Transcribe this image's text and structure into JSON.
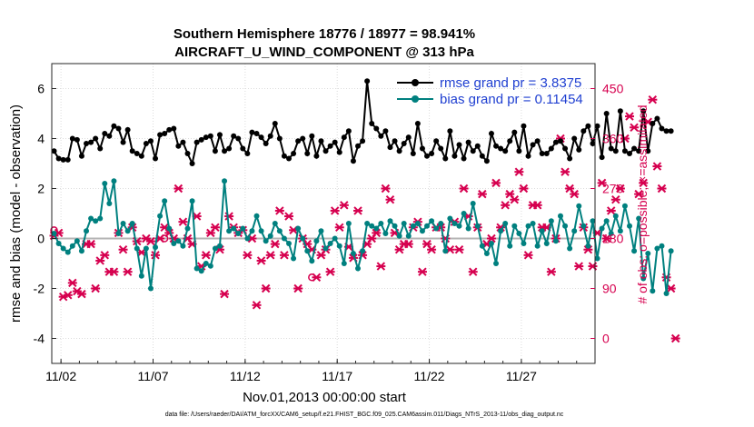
{
  "chart_data": {
    "type": "line",
    "title": "Southern Hemisphere 18776 / 18977 = 98.941%",
    "subtitle": "AIRCRAFT_U_WIND_COMPONENT @ 313 hPa",
    "xlabel": "Nov.01,2013 00:00:00 start",
    "ylabel": "rmse and bias (model - observation)",
    "ylabel_right": "# of obs: o=possible; ×=assimilated",
    "x_ticks": [
      "11/02",
      "11/07",
      "11/12",
      "11/17",
      "11/22",
      "11/27"
    ],
    "x_tick_days": [
      2,
      7,
      12,
      17,
      22,
      27
    ],
    "xlim": [
      1.5,
      31.0
    ],
    "ylim": [
      -5,
      7
    ],
    "y_ticks": [
      -4,
      -2,
      0,
      2,
      4,
      6
    ],
    "y2lim": [
      -45,
      495
    ],
    "y2_ticks": [
      0,
      90,
      180,
      270,
      360,
      450
    ],
    "step_days": 0.25,
    "start_day": 1.625,
    "legend": [
      {
        "label": "rmse grand pr = 3.8375",
        "color": "#000000"
      },
      {
        "label": "bias grand pr = 0.11454",
        "color": "#00807f"
      }
    ],
    "series": [
      {
        "name": "rmse",
        "color": "#000000",
        "axis": "left",
        "values": [
          3.5,
          3.2,
          3.15,
          3.15,
          4.0,
          3.95,
          3.3,
          3.8,
          3.85,
          4.0,
          3.6,
          4.2,
          4.1,
          4.5,
          4.4,
          3.85,
          4.35,
          3.5,
          3.4,
          3.3,
          3.8,
          3.9,
          3.2,
          4.15,
          4.2,
          4.35,
          4.4,
          3.7,
          3.85,
          3.4,
          3.0,
          3.85,
          3.95,
          4.05,
          4.1,
          3.5,
          4.15,
          3.5,
          3.6,
          4.1,
          4.0,
          3.6,
          3.4,
          4.25,
          4.2,
          4.05,
          3.8,
          4.1,
          4.6,
          4.0,
          3.3,
          3.2,
          3.4,
          3.9,
          4.0,
          3.4,
          4.1,
          3.3,
          3.9,
          3.5,
          3.7,
          3.85,
          3.45,
          4.05,
          4.3,
          3.1,
          3.7,
          3.9,
          6.3,
          4.6,
          4.4,
          4.1,
          4.3,
          3.65,
          3.9,
          3.5,
          3.8,
          4.05,
          3.4,
          4.6,
          3.6,
          3.3,
          3.4,
          3.9,
          3.6,
          3.2,
          4.3,
          3.3,
          3.75,
          3.2,
          3.85,
          3.5,
          3.7,
          3.3,
          3.1,
          4.2,
          3.7,
          3.6,
          3.5,
          3.9,
          4.25,
          3.5,
          4.5,
          3.3,
          3.75,
          3.9,
          3.4,
          3.4,
          3.6,
          3.85,
          3.9,
          3.6,
          3.2,
          4.0,
          3.55,
          4.3,
          4.5,
          3.8,
          4.5,
          3.25,
          5.0,
          3.6,
          3.5,
          5.1,
          3.5,
          3.4,
          3.6,
          3.5,
          5.1,
          3.5,
          4.6,
          4.8,
          4.4,
          4.3,
          4.3
        ],
        "marker": "circle"
      },
      {
        "name": "bias",
        "color": "#00807f",
        "axis": "left",
        "values": [
          0.2,
          -0.2,
          -0.4,
          -0.55,
          -0.3,
          -0.1,
          -0.5,
          0.3,
          0.8,
          0.7,
          0.8,
          2.2,
          1.4,
          2.3,
          0.2,
          0.6,
          0.3,
          0.6,
          -0.4,
          -1.5,
          -0.4,
          -2.0,
          -0.35,
          0.9,
          1.5,
          0.4,
          -0.2,
          -0.1,
          -0.3,
          0.4,
          1.5,
          -1.2,
          -1.3,
          -1.0,
          -1.1,
          -0.4,
          -0.3,
          2.3,
          0.3,
          0.4,
          0.2,
          0.4,
          0.0,
          0.3,
          0.9,
          0.3,
          -0.1,
          0.1,
          0.6,
          0.3,
          0.0,
          -0.2,
          -0.8,
          0.4,
          0.0,
          -0.5,
          -0.9,
          -0.1,
          0.3,
          -0.4,
          -0.2,
          0.0,
          -0.3,
          -1.0,
          0.6,
          -0.6,
          -1.2,
          -0.5,
          0.6,
          0.5,
          0.4,
          0.6,
          0.2,
          0.7,
          0.5,
          0.1,
          0.6,
          0.1,
          0.5,
          0.6,
          0.3,
          0.5,
          0.7,
          0.4,
          0.6,
          -0.5,
          0.8,
          0.6,
          0.5,
          1.0,
          0.4,
          1.4,
          0.5,
          -0.3,
          -0.6,
          -0.2,
          -1.0,
          0.3,
          0.6,
          -0.3,
          0.5,
          0.2,
          -0.2,
          0.5,
          0.6,
          -0.3,
          0.3,
          -0.2,
          0.7,
          -0.1,
          0.9,
          0.5,
          -0.4,
          0.3,
          1.3,
          0.5,
          -0.3,
          0.7,
          -0.8,
          0.4,
          0.7,
          0.2,
          0.9,
          0.3,
          1.3,
          0.5,
          -0.5,
          0.8,
          -1.6,
          -0.6,
          -2.1,
          -0.4,
          -0.3,
          -2.2,
          -0.5
        ],
        "marker": "circle"
      },
      {
        "name": "assimilated",
        "color": "#d6004f",
        "axis": "right",
        "values": [
          185,
          190,
          75,
          78,
          100,
          85,
          80,
          170,
          170,
          90,
          140,
          150,
          120,
          120,
          190,
          160,
          120,
          200,
          175,
          155,
          180,
          175,
          150,
          180,
          200,
          190,
          180,
          270,
          210,
          180,
          170,
          220,
          130,
          150,
          190,
          200,
          160,
          80,
          220,
          200,
          190,
          195,
          150,
          180,
          60,
          140,
          90,
          150,
          170,
          230,
          150,
          220,
          195,
          90,
          180,
          170,
          160,
          110,
          150,
          160,
          120,
          230,
          200,
          240,
          165,
          145,
          230,
          150,
          170,
          180,
          190,
          130,
          270,
          250,
          190,
          160,
          170,
          170,
          200,
          210,
          120,
          170,
          160,
          200,
          200,
          180,
          160,
          210,
          160,
          270,
          220,
          120,
          200,
          260,
          170,
          180,
          280,
          200,
          240,
          260,
          250,
          300,
          270,
          150,
          240,
          240,
          200,
          200,
          120,
          180,
          360,
          300,
          270,
          260,
          130,
          200,
          160,
          130,
          190,
          280,
          180,
          230,
          250,
          270,
          360,
          400,
          380,
          260,
          280,
          390,
          430,
          310,
          270,
          110,
          90,
          0
        ]
      },
      {
        "name": "possible",
        "color": "#d6004f",
        "axis": "right",
        "marker": "o",
        "values": [
          195,
          null,
          null,
          null,
          null,
          null,
          null,
          null,
          null,
          null,
          null,
          null,
          null,
          null,
          null,
          null,
          null,
          null,
          null,
          null,
          null,
          null,
          null,
          null,
          180,
          null,
          null,
          null,
          null,
          null,
          null,
          null,
          null,
          null,
          null,
          null,
          null,
          null,
          null,
          null,
          null,
          null,
          null,
          null,
          null,
          null,
          null,
          null,
          null,
          null,
          null,
          null,
          null,
          null,
          null,
          null,
          110,
          null,
          null,
          null,
          null,
          null,
          null,
          null,
          null,
          null,
          null,
          null,
          null,
          null,
          null,
          null,
          null,
          null,
          null,
          null,
          null,
          null,
          null,
          null,
          null,
          null,
          null,
          null,
          null,
          null,
          null,
          null,
          null,
          null,
          null,
          null,
          null,
          null,
          null,
          null,
          null,
          null,
          null,
          null,
          null,
          null,
          null,
          null,
          null,
          null,
          null,
          null,
          null,
          null,
          null,
          null,
          null,
          null,
          null,
          null,
          null,
          null,
          null,
          null,
          null,
          null,
          null,
          null,
          null,
          null,
          null,
          null,
          null,
          null,
          null,
          null,
          null,
          null,
          null,
          null,
          null,
          null,
          null,
          null,
          null,
          null,
          null,
          null,
          null,
          null,
          null,
          null,
          null,
          null,
          null,
          null,
          null,
          null,
          null,
          null,
          null,
          null,
          null,
          null,
          null,
          null
        ]
      }
    ]
  },
  "footer": "data file: /Users/raeder/DAI/ATM_forcXX/CAM6_setup/f.e21.FHIST_BGC.f09_025.CAM6assim.011/Diags_NTrS_2013-11/obs_diag_output.nc"
}
